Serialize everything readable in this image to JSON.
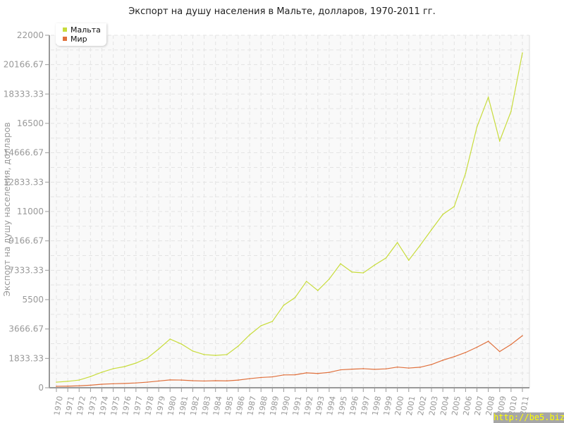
{
  "chart_data": {
    "type": "line",
    "title": "Экспорт на душу населения в Мальте, долларов, 1970-2011 гг.",
    "ylabel": "Экспорт на душу населения, долларов",
    "xlabel": "",
    "ylim": [
      0,
      22000
    ],
    "yticks": [
      "0",
      "1833.33",
      "3666.67",
      "5500",
      "7333.33",
      "9166.67",
      "11000",
      "12833.33",
      "14666.67",
      "16500",
      "18333.33",
      "20166.67",
      "22000"
    ],
    "x": [
      1970,
      1971,
      1972,
      1973,
      1974,
      1975,
      1976,
      1977,
      1978,
      1979,
      1980,
      1981,
      1982,
      1983,
      1984,
      1985,
      1986,
      1987,
      1988,
      1989,
      1990,
      1991,
      1992,
      1993,
      1994,
      1995,
      1996,
      1997,
      1998,
      1999,
      2000,
      2001,
      2002,
      2003,
      2004,
      2005,
      2006,
      2007,
      2008,
      2009,
      2010,
      2011
    ],
    "grid": true,
    "legend_position": "top-left",
    "series": [
      {
        "name": "Мальта",
        "color": "#c8dc3c",
        "values": [
          350,
          400,
          480,
          700,
          970,
          1190,
          1320,
          1540,
          1850,
          2420,
          3040,
          2730,
          2290,
          2070,
          2020,
          2070,
          2600,
          3300,
          3870,
          4140,
          5150,
          5630,
          6640,
          6070,
          6780,
          7740,
          7220,
          7170,
          7660,
          8100,
          9060,
          7960,
          8890,
          9860,
          10820,
          11310,
          13380,
          16280,
          18130,
          15400,
          17250,
          20900
        ]
      },
      {
        "name": "Мир",
        "color": "#e0703c",
        "values": [
          90,
          100,
          120,
          160,
          220,
          250,
          270,
          300,
          350,
          420,
          490,
          480,
          440,
          420,
          440,
          430,
          480,
          570,
          640,
          680,
          800,
          810,
          930,
          890,
          960,
          1120,
          1160,
          1190,
          1150,
          1180,
          1290,
          1230,
          1280,
          1450,
          1720,
          1940,
          2200,
          2530,
          2900,
          2260,
          2700,
          3250
        ]
      }
    ]
  },
  "watermark": "http://be5.biz/"
}
